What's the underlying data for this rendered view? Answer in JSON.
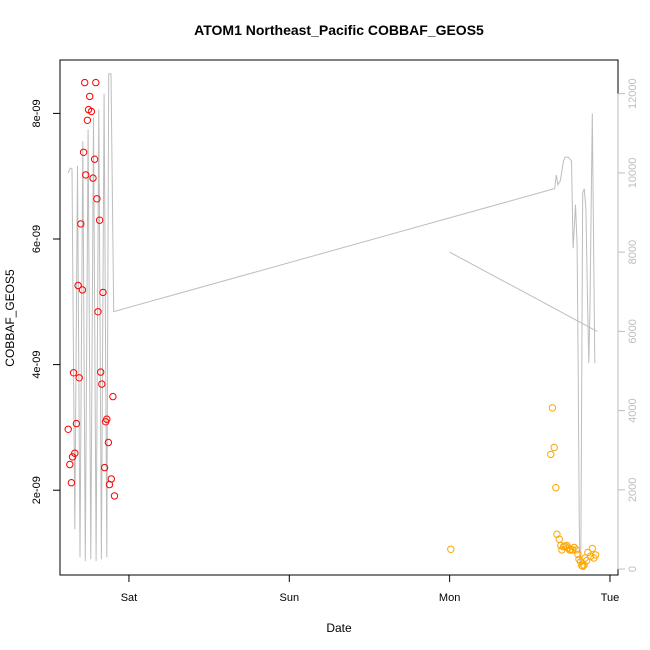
{
  "chart_data": {
    "type": "scatter",
    "title": "ATOM1 Northeast_Pacific COBBAF_GEOS5",
    "xlabel": "Date",
    "ylabel": "COBBAF_GEOS5",
    "x_ticks": [
      "Sat",
      "Sun",
      "Mon",
      "Tue"
    ],
    "x_tick_days": [
      1,
      2,
      3,
      4
    ],
    "xlim_days": [
      0.57,
      4.05
    ],
    "ylim": [
      6.5e-10,
      8.85e-09
    ],
    "y_ticks": [
      2e-09,
      4e-09,
      6e-09,
      8e-09
    ],
    "y_tick_labels": [
      "2e-09",
      "4e-09",
      "6e-09",
      "8e-09"
    ],
    "y2lim": [
      -150,
      12850
    ],
    "y2_ticks": [
      0,
      2000,
      4000,
      6000,
      8000,
      10000,
      12000
    ],
    "y2_tick_labels": [
      "0",
      "2000",
      "4000",
      "6000",
      "8000",
      "10000",
      "12000"
    ],
    "grid": false,
    "series": [
      {
        "color": "#ff0000",
        "marker": "open-circle",
        "points": [
          [
            0.621,
            2.97e-09
          ],
          [
            0.631,
            2.41e-09
          ],
          [
            0.641,
            2.12e-09
          ],
          [
            0.648,
            2.53e-09
          ],
          [
            0.655,
            3.87e-09
          ],
          [
            0.662,
            2.59e-09
          ],
          [
            0.672,
            3.06e-09
          ],
          [
            0.683,
            5.26e-09
          ],
          [
            0.69,
            3.79e-09
          ],
          [
            0.7,
            6.24e-09
          ],
          [
            0.71,
            5.19e-09
          ],
          [
            0.717,
            7.38e-09
          ],
          [
            0.724,
            8.49e-09
          ],
          [
            0.731,
            7.02e-09
          ],
          [
            0.741,
            7.89e-09
          ],
          [
            0.748,
            8.06e-09
          ],
          [
            0.755,
            8.27e-09
          ],
          [
            0.766,
            8.03e-09
          ],
          [
            0.776,
            6.97e-09
          ],
          [
            0.786,
            7.27e-09
          ],
          [
            0.793,
            8.49e-09
          ],
          [
            0.8,
            6.64e-09
          ],
          [
            0.807,
            4.84e-09
          ],
          [
            0.817,
            6.3e-09
          ],
          [
            0.824,
            3.88e-09
          ],
          [
            0.831,
            3.69e-09
          ],
          [
            0.838,
            5.15e-09
          ],
          [
            0.848,
            2.36e-09
          ],
          [
            0.855,
            3.09e-09
          ],
          [
            0.862,
            3.13e-09
          ],
          [
            0.872,
            2.76e-09
          ],
          [
            0.879,
            2.09e-09
          ],
          [
            0.89,
            2.18e-09
          ],
          [
            0.9,
            3.49e-09
          ],
          [
            0.91,
            1.91e-09
          ]
        ]
      },
      {
        "color": "#ffa500",
        "marker": "open-circle",
        "points": [
          [
            3.007,
            1.06e-09
          ],
          [
            3.631,
            2.57e-09
          ],
          [
            3.641,
            3.31e-09
          ],
          [
            3.652,
            2.68e-09
          ],
          [
            3.662,
            2.04e-09
          ],
          [
            3.669,
            1.3e-09
          ],
          [
            3.683,
            1.22e-09
          ],
          [
            3.693,
            1.12e-09
          ],
          [
            3.7,
            1.05e-09
          ],
          [
            3.71,
            1.1e-09
          ],
          [
            3.72,
            1.11e-09
          ],
          [
            3.731,
            1.12e-09
          ],
          [
            3.738,
            1.08e-09
          ],
          [
            3.748,
            1.05e-09
          ],
          [
            3.755,
            1.06e-09
          ],
          [
            3.766,
            1.05e-09
          ],
          [
            3.776,
            1.09e-09
          ],
          [
            3.79,
            1.05e-09
          ],
          [
            3.8,
            9.8e-10
          ],
          [
            3.807,
            9e-10
          ],
          [
            3.817,
            8.6e-10
          ],
          [
            3.824,
            8e-10
          ],
          [
            3.831,
            7.9e-10
          ],
          [
            3.838,
            8.1e-10
          ],
          [
            3.845,
            9.2e-10
          ],
          [
            3.855,
            8.8e-10
          ],
          [
            3.862,
            1.01e-09
          ],
          [
            3.879,
            9.5e-10
          ],
          [
            3.89,
            1.07e-09
          ],
          [
            3.9,
            9.2e-10
          ],
          [
            3.91,
            9.7e-10
          ]
        ]
      },
      {
        "color": "#bdbdbd",
        "axis": "right",
        "style": "line",
        "points": [
          [
            0.621,
            10000
          ],
          [
            0.634,
            10120
          ],
          [
            0.645,
            10100
          ],
          [
            0.662,
            1000
          ],
          [
            0.679,
            10180
          ],
          [
            0.695,
            300
          ],
          [
            0.712,
            10800
          ],
          [
            0.728,
            200
          ],
          [
            0.745,
            11100
          ],
          [
            0.762,
            250
          ],
          [
            0.779,
            11400
          ],
          [
            0.795,
            200
          ],
          [
            0.812,
            11600
          ],
          [
            0.828,
            250
          ],
          [
            0.845,
            12000
          ],
          [
            0.862,
            300
          ],
          [
            0.874,
            12500
          ],
          [
            0.888,
            12500
          ],
          [
            0.905,
            6500
          ],
          [
            3.65,
            9600
          ],
          [
            3.655,
            9600
          ],
          [
            3.665,
            9950
          ],
          [
            3.675,
            9700
          ],
          [
            3.69,
            9800
          ],
          [
            3.71,
            10300
          ],
          [
            3.72,
            10400
          ],
          [
            3.74,
            10400
          ],
          [
            3.76,
            10300
          ],
          [
            3.77,
            8100
          ],
          [
            3.78,
            8800
          ],
          [
            3.785,
            9200
          ],
          [
            3.795,
            8200
          ],
          [
            3.802,
            5000
          ],
          [
            3.808,
            1300
          ],
          [
            3.812,
            200
          ],
          [
            3.818,
            200
          ],
          [
            3.83,
            9500
          ],
          [
            3.84,
            9600
          ],
          [
            3.85,
            9100
          ],
          [
            3.86,
            6800
          ],
          [
            3.868,
            5200
          ],
          [
            3.875,
            6500
          ],
          [
            3.89,
            11500
          ],
          [
            3.905,
            5200
          ]
        ]
      },
      {
        "color": "#bdbdbd",
        "axis": "right",
        "style": "line",
        "points": [
          [
            3.0,
            8000
          ],
          [
            3.92,
            6000
          ]
        ]
      }
    ]
  }
}
